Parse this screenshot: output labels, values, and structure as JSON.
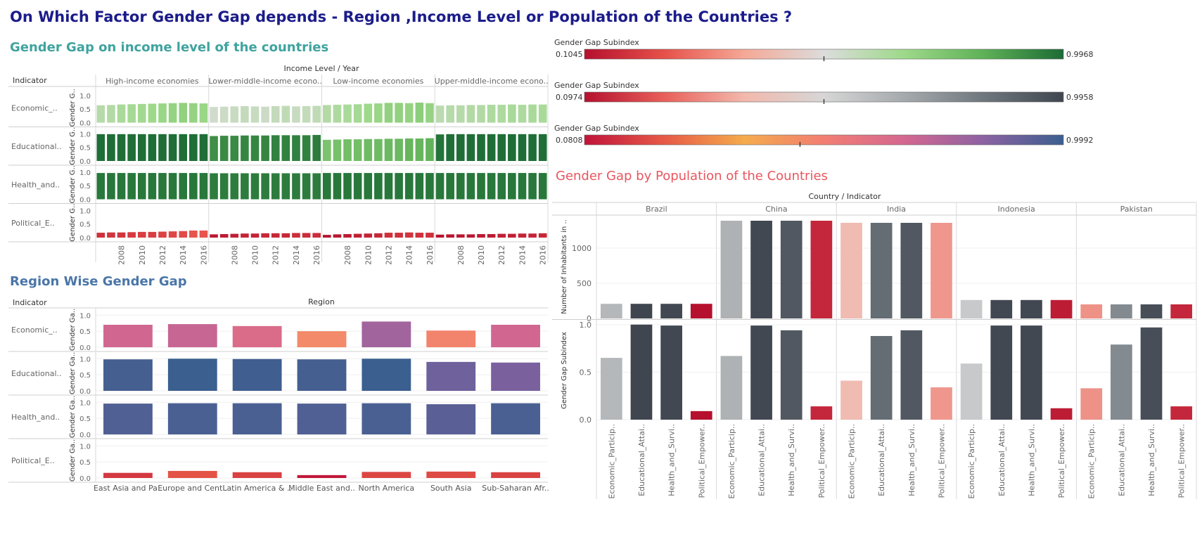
{
  "title": "On Which Factor Gender Gap depends - Region ,Income Level or Population of the Countries ?",
  "legends": [
    {
      "title": "Gender Gap Subindex",
      "min": "0.1045",
      "max": "0.9968",
      "marker": 0.5,
      "stops": [
        "#b5102e",
        "#e6514a",
        "#f5a896",
        "#dcdcdc",
        "#9ed98a",
        "#5fb157",
        "#1c6b35"
      ]
    },
    {
      "title": "Gender Gap Subindex",
      "min": "0.0974",
      "max": "0.9958",
      "marker": 0.5,
      "stops": [
        "#b5102e",
        "#e8605a",
        "#f3b8ac",
        "#d6d6d6",
        "#a5aaad",
        "#6f777e",
        "#3f4650"
      ]
    },
    {
      "title": "Gender Gap Subindex",
      "min": "0.0808",
      "max": "0.9992",
      "marker": 0.45,
      "stops": [
        "#c0143a",
        "#e65a47",
        "#f4ab4c",
        "#f27e73",
        "#d46790",
        "#8c62a2",
        "#3b5f8f"
      ]
    }
  ],
  "income_section": {
    "title": "Gender Gap on income level of the countries",
    "title_color": "#3fa39f",
    "indicator_header": "Indicator",
    "column_header": "Income Level / Year",
    "y_axis_label": "Gender G..",
    "y_ticks": [
      "1.0",
      "0.5",
      "0.0"
    ],
    "row_labels": [
      "Economic_..",
      "Educational..",
      "Health_and..",
      "Political_E.."
    ]
  },
  "region_section": {
    "title": "Region Wise Gender Gap",
    "title_color": "#4a76a8",
    "indicator_header": "Indicator",
    "column_header": "Region",
    "y_axis_label": "Gender Ga..",
    "y_ticks": [
      "1.0",
      "0.5",
      "0.0"
    ],
    "row_labels": [
      "Economic_..",
      "Educational..",
      "Health_and..",
      "Political_E.."
    ]
  },
  "population_section": {
    "title": "Gender Gap by Population of the Countries",
    "title_color": "#e8565f",
    "column_header": "Country / Indicator",
    "top_axis_label": "Number of Inhabitants in ..",
    "bottom_axis_label": "Gender Gap Subindex",
    "top_ticks": [
      "1000",
      "500",
      "0"
    ],
    "bottom_ticks": [
      "1.0",
      "0.5",
      "0.0"
    ]
  },
  "chart_data": [
    {
      "type": "bar",
      "title": "Gender Gap on income level of the countries",
      "xlabel": "Income Level / Year",
      "ylim": [
        0,
        1.05
      ],
      "income_groups": [
        "High-income economies",
        "Lower-middle-income econo..",
        "Low-income economies",
        "Upper-middle-income econo.."
      ],
      "years": [
        "2006",
        "2007",
        "2008",
        "2009",
        "2010",
        "2011",
        "2012",
        "2013",
        "2014",
        "2015",
        "2016"
      ],
      "year_tick_labels": [
        "2008",
        "2010",
        "2012",
        "2014",
        "2016"
      ],
      "indicators": [
        "Economic_..",
        "Educational..",
        "Health_and..",
        "Political_E.."
      ],
      "values": {
        "Economic_..": [
          [
            0.64,
            0.65,
            0.67,
            0.68,
            0.69,
            0.7,
            0.71,
            0.72,
            0.73,
            0.72,
            0.71
          ],
          [
            0.58,
            0.59,
            0.6,
            0.61,
            0.6,
            0.59,
            0.61,
            0.62,
            0.6,
            0.61,
            0.62
          ],
          [
            0.65,
            0.66,
            0.67,
            0.68,
            0.7,
            0.71,
            0.73,
            0.73,
            0.72,
            0.74,
            0.72
          ],
          [
            0.63,
            0.64,
            0.64,
            0.65,
            0.65,
            0.66,
            0.66,
            0.67,
            0.66,
            0.67,
            0.67
          ]
        ],
        "Educational..": [
          [
            0.99,
            0.99,
            0.99,
            0.99,
            0.99,
            0.99,
            0.99,
            0.99,
            0.99,
            0.99,
            0.99
          ],
          [
            0.92,
            0.93,
            0.93,
            0.94,
            0.94,
            0.94,
            0.95,
            0.95,
            0.95,
            0.95,
            0.96
          ],
          [
            0.78,
            0.79,
            0.8,
            0.8,
            0.81,
            0.81,
            0.82,
            0.82,
            0.83,
            0.83,
            0.84
          ],
          [
            0.98,
            0.99,
            0.99,
            0.99,
            0.99,
            0.99,
            0.99,
            0.99,
            0.99,
            0.99,
            0.99
          ]
        ],
        "Health_and..": [
          [
            0.97,
            0.97,
            0.97,
            0.97,
            0.97,
            0.97,
            0.97,
            0.97,
            0.97,
            0.97,
            0.97
          ],
          [
            0.96,
            0.96,
            0.96,
            0.96,
            0.96,
            0.96,
            0.96,
            0.96,
            0.96,
            0.96,
            0.96
          ],
          [
            0.97,
            0.97,
            0.97,
            0.97,
            0.97,
            0.97,
            0.97,
            0.97,
            0.97,
            0.97,
            0.97
          ],
          [
            0.97,
            0.97,
            0.97,
            0.97,
            0.97,
            0.97,
            0.97,
            0.97,
            0.97,
            0.97,
            0.97
          ]
        ],
        "Political_E..": [
          [
            0.18,
            0.19,
            0.19,
            0.2,
            0.21,
            0.21,
            0.22,
            0.23,
            0.24,
            0.26,
            0.26
          ],
          [
            0.12,
            0.13,
            0.14,
            0.15,
            0.15,
            0.16,
            0.16,
            0.16,
            0.17,
            0.17,
            0.17
          ],
          [
            0.1,
            0.12,
            0.13,
            0.14,
            0.15,
            0.16,
            0.18,
            0.18,
            0.19,
            0.18,
            0.18
          ],
          [
            0.11,
            0.12,
            0.12,
            0.12,
            0.13,
            0.13,
            0.14,
            0.14,
            0.15,
            0.15,
            0.16
          ]
        ]
      }
    },
    {
      "type": "bar",
      "title": "Region Wise Gender Gap",
      "xlabel": "Region",
      "ylim": [
        0,
        1.05
      ],
      "categories": [
        "East Asia and Pa..",
        "Europe and Cent..",
        "Latin America & ..",
        "Middle East and..",
        "North America",
        "South Asia",
        "Sub-Saharan Afr.."
      ],
      "series": [
        {
          "name": "Economic_..",
          "values": [
            0.7,
            0.72,
            0.66,
            0.5,
            0.8,
            0.52,
            0.7
          ]
        },
        {
          "name": "Educational..",
          "values": [
            0.98,
            1.0,
            0.99,
            0.98,
            1.0,
            0.9,
            0.88
          ]
        },
        {
          "name": "Health_and..",
          "values": [
            0.96,
            0.97,
            0.97,
            0.96,
            0.97,
            0.94,
            0.97
          ]
        },
        {
          "name": "Political_E..",
          "values": [
            0.16,
            0.22,
            0.18,
            0.09,
            0.19,
            0.2,
            0.18
          ]
        }
      ]
    },
    {
      "type": "bar",
      "title": "Gender Gap by Population of the Countries",
      "xlabel": "Country / Indicator",
      "countries": [
        "Brazil",
        "China",
        "India",
        "Indonesia",
        "Pakistan"
      ],
      "indicators": [
        "Economic_Particip..",
        "Educational_Attai..",
        "Health_and_Survi..",
        "Political_Empower.."
      ],
      "top_ylabel": "Number of Inhabitants in ..",
      "top_ylim": [
        0,
        1450
      ],
      "top_values": [
        [
          208,
          208,
          208,
          208
        ],
        [
          1390,
          1390,
          1390,
          1390
        ],
        [
          1360,
          1360,
          1360,
          1360
        ],
        [
          262,
          262,
          262,
          262
        ],
        [
          200,
          200,
          200,
          200
        ]
      ],
      "bottom_ylabel": "Gender Gap Subindex",
      "bottom_ylim": [
        0,
        1.05
      ],
      "bottom_values": [
        [
          0.65,
          1.0,
          0.99,
          0.09
        ],
        [
          0.67,
          0.99,
          0.94,
          0.14
        ],
        [
          0.41,
          0.88,
          0.94,
          0.34
        ],
        [
          0.59,
          0.99,
          0.99,
          0.12
        ],
        [
          0.33,
          0.79,
          0.97,
          0.14
        ]
      ]
    }
  ]
}
